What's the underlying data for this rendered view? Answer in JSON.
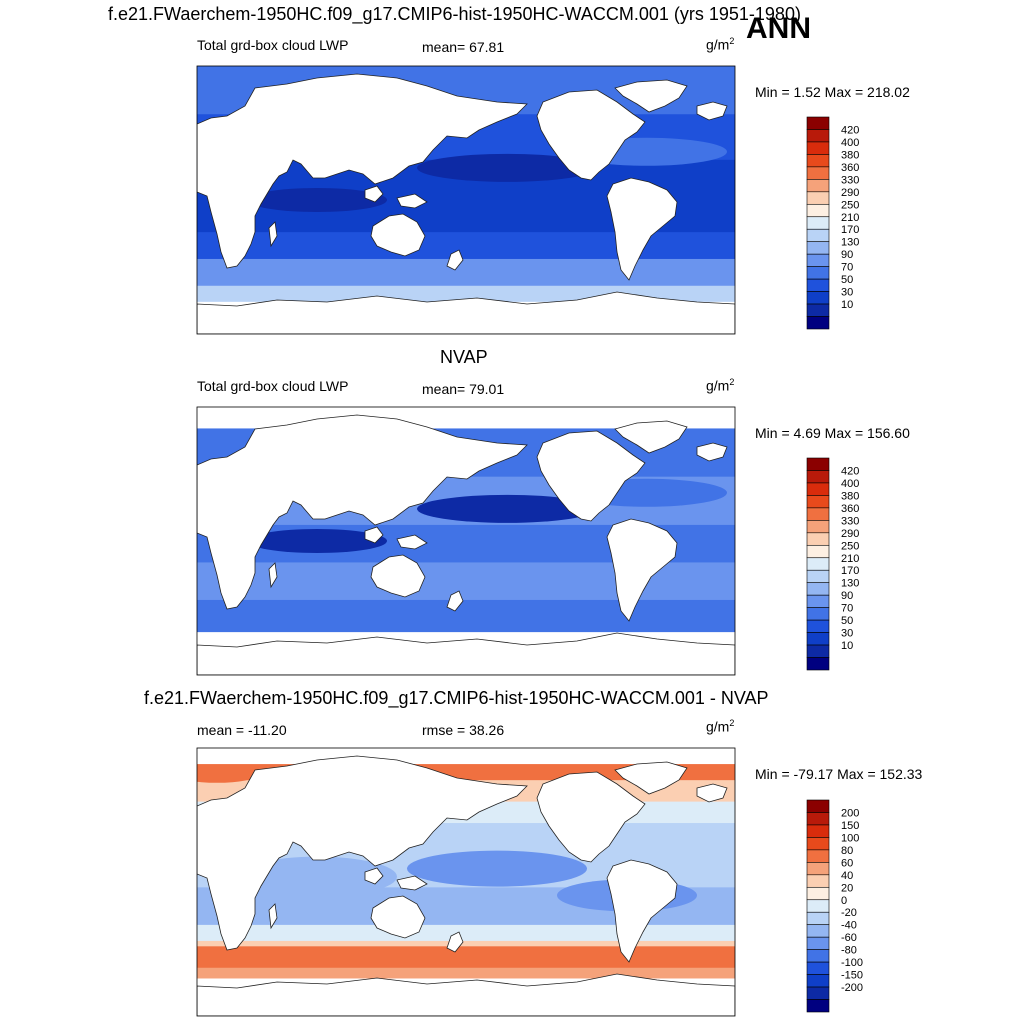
{
  "header": {
    "title": "f.e21.FWaerchem-1950HC.f09_g17.CMIP6-hist-1950HC-WACCM.001 (yrs 1951-1980)",
    "season": "ANN"
  },
  "panels": [
    {
      "variable": "Total grd-box cloud LWP",
      "stat": "mean=  67.81",
      "unit": "g/m",
      "unit_sup": "2",
      "minmax": "Min =   1.52 Max = 218.02"
    },
    {
      "title": "NVAP",
      "variable": "Total grd-box cloud LWP",
      "stat": "mean=  79.01",
      "unit": "g/m",
      "unit_sup": "2",
      "minmax": "Min =   4.69 Max = 156.60"
    },
    {
      "title": "f.e21.FWaerchem-1950HC.f09_g17.CMIP6-hist-1950HC-WACCM.001 - NVAP",
      "variable": "mean = -11.20",
      "stat": "rmse =  38.26",
      "unit": "g/m",
      "unit_sup": "2",
      "minmax": "Min = -79.17 Max = 152.33"
    }
  ],
  "chart_data": [
    {
      "type": "heatmap",
      "title": "f.e21.FWaerchem-1950HC.f09_g17.CMIP6-hist-1950HC-WACCM.001 (yrs 1951-1980)",
      "subtitle": "Total grd-box cloud LWP",
      "mean": 67.81,
      "min": 1.52,
      "max": 218.02,
      "units": "g/m2",
      "colorbar_levels": [
        "420",
        "400",
        "380",
        "360",
        "330",
        "290",
        "250",
        "210",
        "170",
        "130",
        "90",
        "70",
        "50",
        "30",
        "10"
      ],
      "colorbar_colors": [
        "#8b0000",
        "#b81a0a",
        "#d92c0c",
        "#e84a1c",
        "#f07040",
        "#f5a27a",
        "#fbcfb2",
        "#fdefe2",
        "#dcecf8",
        "#b9d3f6",
        "#94b6f2",
        "#6a94ee",
        "#4173e6",
        "#1f52dc",
        "#0f3fc8",
        "#0d2aa5",
        "#000080"
      ]
    },
    {
      "type": "heatmap",
      "title": "NVAP",
      "subtitle": "Total grd-box cloud LWP",
      "mean": 79.01,
      "min": 4.69,
      "max": 156.6,
      "units": "g/m2",
      "colorbar_levels": [
        "420",
        "400",
        "380",
        "360",
        "330",
        "290",
        "250",
        "210",
        "170",
        "130",
        "90",
        "70",
        "50",
        "30",
        "10"
      ],
      "colorbar_colors": [
        "#8b0000",
        "#b81a0a",
        "#d92c0c",
        "#e84a1c",
        "#f07040",
        "#f5a27a",
        "#fbcfb2",
        "#fdefe2",
        "#dcecf8",
        "#b9d3f6",
        "#94b6f2",
        "#6a94ee",
        "#4173e6",
        "#1f52dc",
        "#0f3fc8",
        "#0d2aa5",
        "#000080"
      ]
    },
    {
      "type": "heatmap",
      "title": "f.e21.FWaerchem-1950HC.f09_g17.CMIP6-hist-1950HC-WACCM.001 - NVAP",
      "mean": -11.2,
      "rmse": 38.26,
      "min": -79.17,
      "max": 152.33,
      "units": "g/m2",
      "colorbar_levels": [
        "200",
        "150",
        "100",
        "80",
        "60",
        "40",
        "20",
        "0",
        "-20",
        "-40",
        "-60",
        "-80",
        "-100",
        "-150",
        "-200"
      ],
      "colorbar_colors": [
        "#8b0000",
        "#b81a0a",
        "#d92c0c",
        "#e84a1c",
        "#f07040",
        "#f5a27a",
        "#fbcfb2",
        "#fdefe2",
        "#dcecf8",
        "#b9d3f6",
        "#94b6f2",
        "#6a94ee",
        "#4173e6",
        "#1f52dc",
        "#0f3fc8",
        "#0d2aa5",
        "#000080"
      ]
    }
  ]
}
